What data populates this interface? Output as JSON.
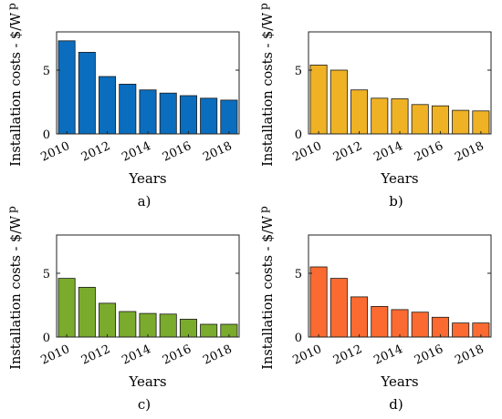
{
  "chart_data": [
    {
      "type": "bar",
      "panel_label": "a)",
      "categories": [
        "2010",
        "2011",
        "2012",
        "2013",
        "2014",
        "2015",
        "2016",
        "2017",
        "2018"
      ],
      "tick_labels": [
        "2010",
        "2012",
        "2014",
        "2016",
        "2018"
      ],
      "values": [
        7.3,
        6.4,
        4.5,
        3.9,
        3.45,
        3.2,
        3.0,
        2.8,
        2.65
      ],
      "xlabel": "Years",
      "ylabel": "Installation costs - $/W",
      "ylabel_sub": "p",
      "ylim": [
        0,
        8
      ],
      "yticks": [
        0,
        5
      ],
      "color": "#0b6dbd",
      "grid": false
    },
    {
      "type": "bar",
      "panel_label": "b)",
      "categories": [
        "2010",
        "2011",
        "2012",
        "2013",
        "2014",
        "2015",
        "2016",
        "2017",
        "2018"
      ],
      "tick_labels": [
        "2010",
        "2012",
        "2014",
        "2016",
        "2018"
      ],
      "values": [
        5.4,
        5.0,
        3.45,
        2.8,
        2.75,
        2.3,
        2.2,
        1.85,
        1.8
      ],
      "xlabel": "Years",
      "ylabel": "Installation costs - $/W",
      "ylabel_sub": "p",
      "ylim": [
        0,
        8
      ],
      "yticks": [
        0,
        5
      ],
      "color": "#efb225",
      "grid": false
    },
    {
      "type": "bar",
      "panel_label": "c)",
      "categories": [
        "2010",
        "2011",
        "2012",
        "2013",
        "2014",
        "2015",
        "2016",
        "2017",
        "2018"
      ],
      "tick_labels": [
        "2010",
        "2012",
        "2014",
        "2016",
        "2018"
      ],
      "values": [
        4.6,
        3.9,
        2.65,
        2.0,
        1.85,
        1.8,
        1.4,
        1.0,
        1.0
      ],
      "xlabel": "Years",
      "ylabel": "Installation costs - $/W",
      "ylabel_sub": "p",
      "ylim": [
        0,
        8
      ],
      "yticks": [
        0,
        5
      ],
      "color": "#7aab2d",
      "grid": false
    },
    {
      "type": "bar",
      "panel_label": "d)",
      "categories": [
        "2010",
        "2011",
        "2012",
        "2013",
        "2014",
        "2015",
        "2016",
        "2017",
        "2018"
      ],
      "tick_labels": [
        "2010",
        "2012",
        "2014",
        "2016",
        "2018"
      ],
      "values": [
        5.5,
        4.6,
        3.15,
        2.4,
        2.15,
        1.95,
        1.55,
        1.1,
        1.1
      ],
      "xlabel": "Years",
      "ylabel": "Installation costs - $/W",
      "ylabel_sub": "p",
      "ylim": [
        0,
        8
      ],
      "yticks": [
        0,
        5
      ],
      "color": "#fb6a30",
      "grid": false
    }
  ]
}
